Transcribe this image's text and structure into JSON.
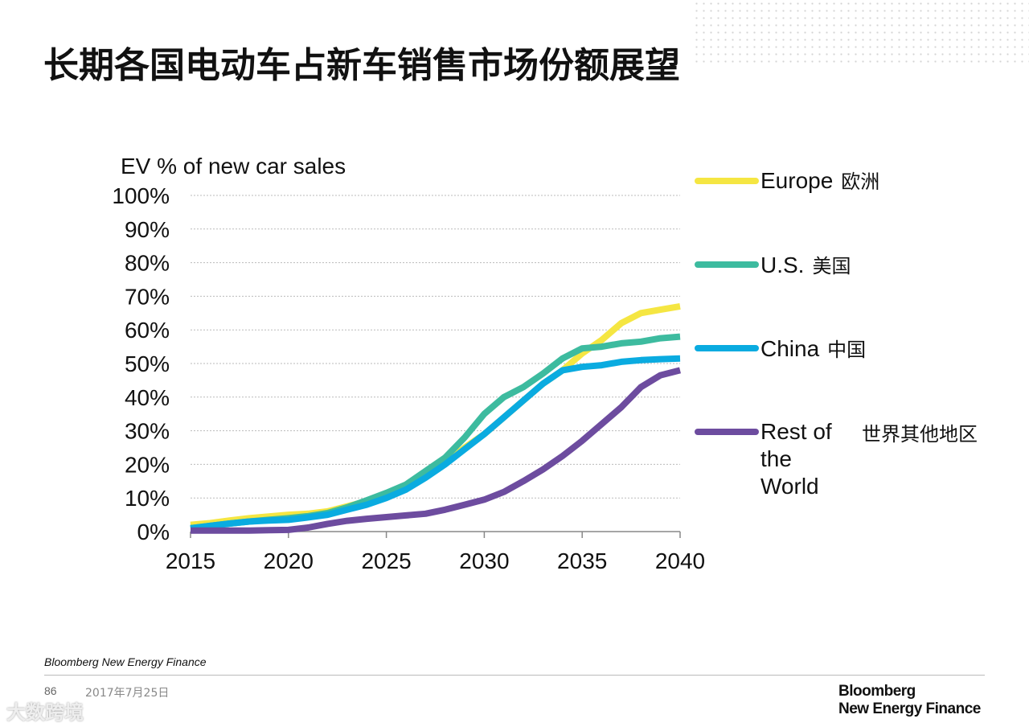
{
  "title": "长期各国电动车占新车销售市场份额展望",
  "source": "Bloomberg New Energy Finance",
  "page_number": "86",
  "date": "2017年7月25日",
  "logo": [
    "Bloomberg",
    "New Energy Finance"
  ],
  "watermark": "大数跨境",
  "chart_data": {
    "type": "line",
    "title": "",
    "ylabel": "EV % of new car sales",
    "xlabel": "",
    "xlim": [
      2015,
      2040
    ],
    "ylim": [
      0,
      100
    ],
    "xticks": [
      "2015",
      "2020",
      "2025",
      "2030",
      "2035",
      "2040"
    ],
    "yticks": [
      "0%",
      "10%",
      "20%",
      "30%",
      "40%",
      "50%",
      "60%",
      "70%",
      "80%",
      "90%",
      "100%"
    ],
    "grid": true,
    "legend_position": "right",
    "x": [
      2015,
      2016,
      2017,
      2018,
      2019,
      2020,
      2021,
      2022,
      2023,
      2024,
      2025,
      2026,
      2027,
      2028,
      2029,
      2030,
      2031,
      2032,
      2033,
      2034,
      2035,
      2036,
      2037,
      2038,
      2039,
      2040
    ],
    "series": [
      {
        "name": "Europe",
        "name_cn": "欧洲",
        "color": "#f5e642",
        "values": [
          2,
          2.5,
          3.3,
          4,
          4.5,
          5,
          5.3,
          6,
          7.5,
          9,
          11,
          13.5,
          17,
          20.5,
          25,
          29,
          34,
          39,
          44,
          48,
          53,
          57,
          62,
          65,
          66,
          67
        ]
      },
      {
        "name": "U.S.",
        "name_cn": "美国",
        "color": "#3dbb9f",
        "values": [
          1,
          1.7,
          2.4,
          3,
          3.5,
          4,
          4.6,
          5.5,
          7.2,
          9.3,
          11.5,
          14,
          18,
          22,
          28,
          35,
          40,
          43,
          47,
          51.5,
          54.5,
          55,
          56,
          56.5,
          57.5,
          58
        ]
      },
      {
        "name": "China",
        "name_cn": "中国",
        "color": "#0aabe0",
        "values": [
          1,
          1.7,
          2.4,
          3,
          3.3,
          3.5,
          4.2,
          5,
          6.5,
          8,
          10,
          12.5,
          16,
          20,
          24.5,
          29,
          34,
          39,
          44,
          48,
          49,
          49.5,
          50.5,
          51,
          51.3,
          51.5
        ]
      },
      {
        "name": "Rest of the World",
        "name_cn": "世界其他地区",
        "color": "#6d4c9f",
        "values": [
          0.3,
          0.3,
          0.3,
          0.3,
          0.4,
          0.5,
          1.2,
          2.3,
          3.2,
          3.8,
          4.3,
          4.8,
          5.3,
          6.5,
          8,
          9.5,
          11.8,
          15,
          18.5,
          22.5,
          27,
          32,
          37,
          43,
          46.5,
          48
        ]
      }
    ]
  }
}
